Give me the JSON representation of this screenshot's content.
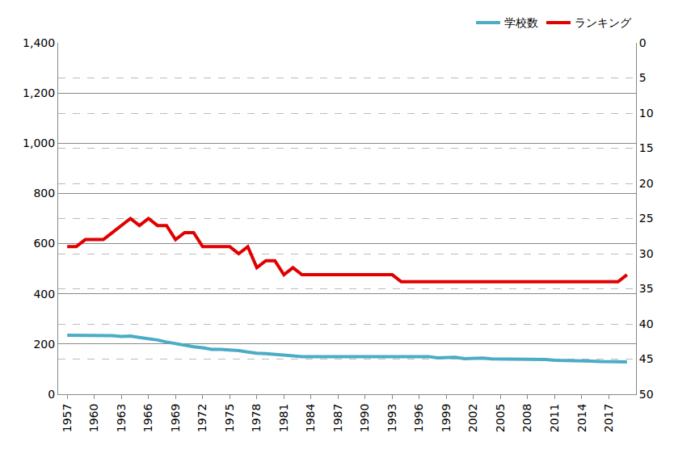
{
  "chart_data": {
    "type": "line",
    "x": [
      1957,
      1958,
      1959,
      1960,
      1961,
      1962,
      1963,
      1964,
      1965,
      1966,
      1967,
      1968,
      1969,
      1970,
      1971,
      1972,
      1973,
      1974,
      1975,
      1976,
      1977,
      1978,
      1979,
      1980,
      1981,
      1982,
      1983,
      1984,
      1985,
      1986,
      1987,
      1988,
      1989,
      1990,
      1991,
      1992,
      1993,
      1994,
      1995,
      1996,
      1997,
      1998,
      1999,
      2000,
      2001,
      2002,
      2003,
      2004,
      2005,
      2006,
      2007,
      2008,
      2009,
      2010,
      2011,
      2012,
      2013,
      2014,
      2015,
      2016,
      2017,
      2018,
      2019
    ],
    "series": [
      {
        "name": "学校数",
        "color": "#4bacc6",
        "values": [
          235,
          235,
          235,
          233,
          233,
          233,
          230,
          232,
          226,
          222,
          216,
          208,
          201,
          197,
          189,
          185,
          179,
          179,
          178,
          174,
          168,
          163,
          162,
          158,
          154,
          153,
          150,
          150,
          150,
          150,
          150,
          150,
          150,
          150,
          150,
          150,
          150,
          150,
          150,
          150,
          150,
          145,
          147,
          147,
          142,
          144,
          144,
          141,
          141,
          141,
          140,
          138,
          138,
          138,
          135,
          135,
          133,
          133,
          132,
          130,
          129,
          129,
          129
        ]
      },
      {
        "name": "ランキング",
        "color": "#e00000",
        "axis": "y2",
        "values": [
          29,
          29,
          28,
          28,
          28,
          27,
          26,
          25,
          26,
          25,
          26,
          26,
          28,
          27,
          27,
          29,
          29,
          29,
          29,
          30,
          29,
          32,
          31,
          31,
          33,
          32,
          33,
          33,
          33,
          33,
          33,
          33,
          33,
          33,
          33,
          33,
          33,
          34,
          34,
          34,
          34,
          34,
          34,
          34,
          34,
          34,
          34,
          34,
          34,
          34,
          34,
          34,
          34,
          34,
          34,
          34,
          34,
          34,
          34,
          34,
          34,
          34,
          33
        ]
      }
    ],
    "xlim": [
      1956,
      2020
    ],
    "xticks": [
      1957,
      1960,
      1963,
      1966,
      1969,
      1972,
      1975,
      1978,
      1981,
      1984,
      1987,
      1990,
      1993,
      1996,
      1999,
      2002,
      2005,
      2008,
      2011,
      2014,
      2017
    ],
    "ylim": [
      0,
      1400
    ],
    "yticks": [
      0,
      200,
      400,
      600,
      800,
      {
        "value": 1000,
        "label": "1,000"
      },
      {
        "value": 1200,
        "label": "1,200"
      },
      {
        "value": 1400,
        "label": "1,400"
      }
    ],
    "y2lim": [
      50,
      0
    ],
    "y2ticks": [
      0,
      5,
      10,
      15,
      20,
      25,
      30,
      35,
      40,
      45,
      50
    ],
    "grid": true,
    "legend": "top right"
  }
}
